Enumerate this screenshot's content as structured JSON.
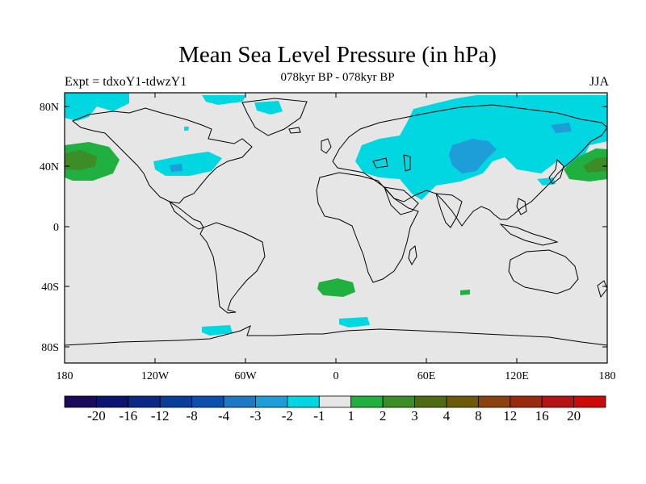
{
  "title": "Mean Sea Level Pressure (in hPa)",
  "subtitle": "078kyr BP - 078kyr BP",
  "left_label": "Expt = tdxoY1-tdwzY1",
  "right_label": "JJA",
  "colors": {
    "background": "#e6e6e6",
    "land_outline": "#000000",
    "anomaly_cyan": "#00d7e0",
    "anomaly_blue": "#1e9ed8",
    "anomaly_green_light": "#20b040",
    "anomaly_green_dark": "#3c8c28"
  },
  "map": {
    "lat_ticks": [
      "80N",
      "40N",
      "0",
      "40S",
      "80S"
    ],
    "lon_ticks": [
      "180",
      "120W",
      "60W",
      "0",
      "60E",
      "120E",
      "180"
    ]
  },
  "colorbar": {
    "colors": [
      "#1a0a5a",
      "#0c1470",
      "#0a2884",
      "#0a3c9a",
      "#0a50ac",
      "#1e78c4",
      "#1e9ed8",
      "#00d7e0",
      "#e6e6e6",
      "#20b040",
      "#3c8c28",
      "#4e6a14",
      "#6a5a0a",
      "#8a4210",
      "#9a2a0e",
      "#b41414",
      "#cc0a0a"
    ],
    "labels": [
      "-20",
      "-16",
      "-12",
      "-8",
      "-4",
      "-3",
      "-2",
      "-1",
      "1",
      "2",
      "3",
      "4",
      "8",
      "12",
      "16",
      "20"
    ]
  }
}
